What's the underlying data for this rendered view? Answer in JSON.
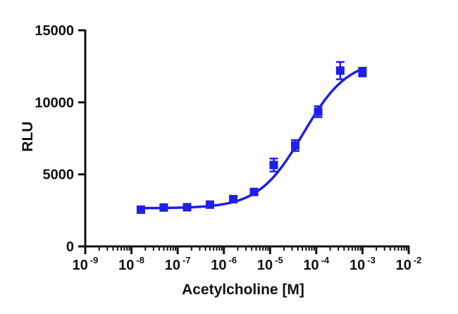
{
  "chart_data": {
    "type": "scatter",
    "title": "",
    "xlabel": "Acetylcholine [M]",
    "ylabel": "RLU",
    "x_scale": "log",
    "xlim": [
      1e-09,
      0.01
    ],
    "ylim": [
      0,
      15000
    ],
    "x_tick_labels": [
      {
        "base": "10",
        "exp": "-9"
      },
      {
        "base": "10",
        "exp": "-8"
      },
      {
        "base": "10",
        "exp": "-7"
      },
      {
        "base": "10",
        "exp": "-6"
      },
      {
        "base": "10",
        "exp": "-5"
      },
      {
        "base": "10",
        "exp": "-4"
      },
      {
        "base": "10",
        "exp": "-3"
      },
      {
        "base": "10",
        "exp": "-2"
      }
    ],
    "y_ticks": [
      0,
      5000,
      10000,
      15000
    ],
    "y_tick_labels": [
      "0",
      "5000",
      "10000",
      "15000"
    ],
    "grid": false,
    "colors": {
      "series": "#1f1fe6",
      "axis": "#111111"
    },
    "series": [
      {
        "marker": "square",
        "points": [
          {
            "x": 1.6e-08,
            "y": 2550,
            "err": 120
          },
          {
            "x": 5e-08,
            "y": 2700,
            "err": 100
          },
          {
            "x": 1.6e-07,
            "y": 2720,
            "err": 100
          },
          {
            "x": 5e-07,
            "y": 2900,
            "err": 120
          },
          {
            "x": 1.6e-06,
            "y": 3280,
            "err": 150
          },
          {
            "x": 4.5e-06,
            "y": 3780,
            "err": 120
          },
          {
            "x": 1.2e-05,
            "y": 5650,
            "err": 450
          },
          {
            "x": 3.5e-05,
            "y": 7000,
            "err": 380
          },
          {
            "x": 0.00011,
            "y": 9350,
            "err": 380
          },
          {
            "x": 0.00033,
            "y": 12200,
            "err": 600
          },
          {
            "x": 0.001,
            "y": 12100,
            "err": 300
          }
        ],
        "fit": {
          "model": "four-parameter-logistic",
          "bottom": 2650,
          "top": 13000,
          "ec50": 5.2e-05,
          "hill": 0.9,
          "x_range": [
            1.6e-08,
            0.001
          ]
        }
      }
    ]
  }
}
